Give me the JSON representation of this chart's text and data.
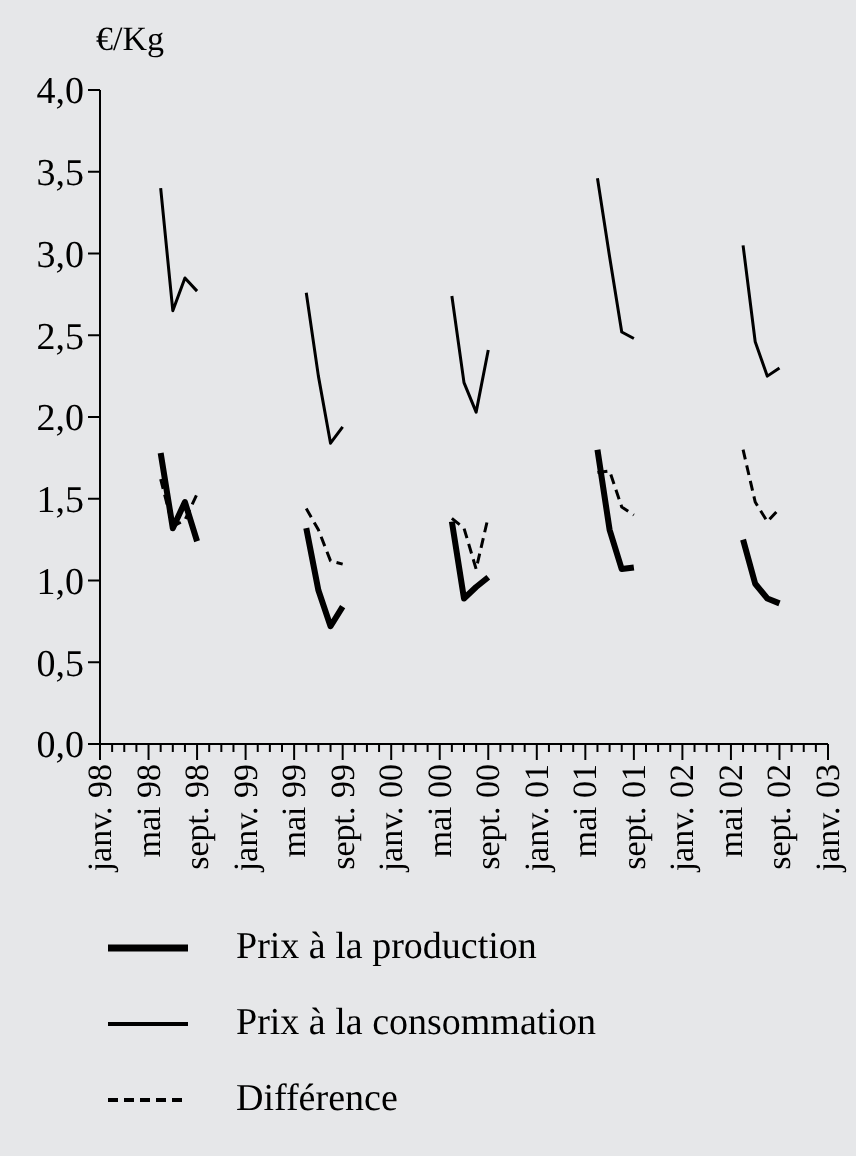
{
  "chart_data": {
    "type": "line",
    "ylabel": "€/Kg",
    "categories": [
      "janv. 98",
      null,
      null,
      null,
      "mai 98",
      null,
      null,
      null,
      "sept. 98",
      null,
      null,
      null,
      "janv. 99",
      null,
      null,
      null,
      "mai 99",
      null,
      null,
      null,
      "sept. 99",
      null,
      null,
      null,
      "janv. 00",
      null,
      null,
      null,
      "mai 00",
      null,
      null,
      null,
      "sept. 00",
      null,
      null,
      null,
      "janv. 01",
      null,
      null,
      null,
      "mai 01",
      null,
      null,
      null,
      "sept. 01",
      null,
      null,
      null,
      "janv. 02",
      null,
      null,
      null,
      "mai 02",
      null,
      null,
      null,
      "sept. 02",
      null,
      null,
      null,
      "janv. 03"
    ],
    "series": [
      {
        "name": "Prix à la production",
        "color": "#000000",
        "line_style": "solid",
        "values": [
          null,
          null,
          null,
          null,
          null,
          1.78,
          1.32,
          1.48,
          1.24,
          null,
          null,
          null,
          null,
          null,
          null,
          null,
          null,
          1.32,
          0.94,
          0.72,
          0.84,
          null,
          null,
          null,
          null,
          null,
          null,
          null,
          null,
          1.36,
          0.89,
          0.96,
          1.02,
          null,
          null,
          null,
          null,
          null,
          null,
          null,
          null,
          1.8,
          1.31,
          1.07,
          1.08,
          null,
          null,
          null,
          null,
          null,
          null,
          null,
          null,
          1.25,
          0.98,
          0.89,
          0.86,
          null,
          null,
          null,
          null
        ]
      },
      {
        "name": "Prix à la consommation",
        "color": "#000000",
        "line_style": "solid",
        "values": [
          null,
          null,
          null,
          null,
          null,
          3.4,
          2.65,
          2.85,
          2.77,
          null,
          null,
          null,
          null,
          null,
          null,
          null,
          null,
          2.76,
          2.25,
          1.84,
          1.94,
          null,
          null,
          null,
          null,
          null,
          null,
          null,
          null,
          2.74,
          2.21,
          2.03,
          2.41,
          null,
          null,
          null,
          null,
          null,
          null,
          null,
          null,
          3.46,
          2.98,
          2.52,
          2.48,
          null,
          null,
          null,
          null,
          null,
          null,
          null,
          null,
          3.05,
          2.46,
          2.25,
          2.3,
          null,
          null,
          null,
          null
        ]
      },
      {
        "name": "Différence",
        "color": "#000000",
        "line_style": "dashed",
        "values": [
          null,
          null,
          null,
          null,
          null,
          1.62,
          1.33,
          1.37,
          1.53,
          null,
          null,
          null,
          null,
          null,
          null,
          null,
          null,
          1.44,
          1.31,
          1.12,
          1.1,
          null,
          null,
          null,
          null,
          null,
          null,
          null,
          null,
          1.38,
          1.32,
          1.07,
          1.39,
          null,
          null,
          null,
          null,
          null,
          null,
          null,
          null,
          1.66,
          1.67,
          1.45,
          1.4,
          null,
          null,
          null,
          null,
          null,
          null,
          null,
          null,
          1.8,
          1.48,
          1.36,
          1.44,
          null,
          null,
          null,
          null
        ]
      }
    ],
    "ylim": [
      0,
      4
    ],
    "yticks": [
      {
        "value": 0,
        "label": "0,0"
      },
      {
        "value": 0.5,
        "label": "0,5"
      },
      {
        "value": 1,
        "label": "1,0"
      },
      {
        "value": 1.5,
        "label": "1,5"
      },
      {
        "value": 2,
        "label": "2,0"
      },
      {
        "value": 2.5,
        "label": "2,5"
      },
      {
        "value": 3,
        "label": "3,0"
      },
      {
        "value": 3.5,
        "label": "3,5"
      },
      {
        "value": 4,
        "label": "4,0"
      }
    ],
    "grid": false,
    "legend": "bottom",
    "marker": "none"
  }
}
